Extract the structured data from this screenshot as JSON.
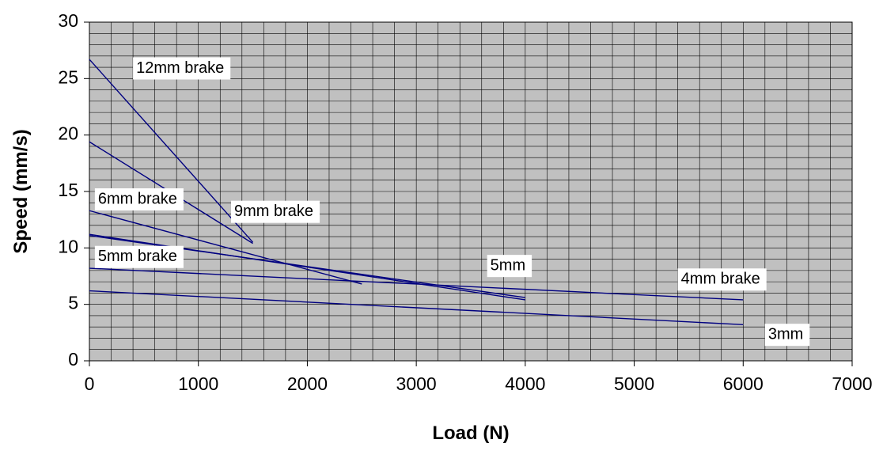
{
  "chart_data": {
    "type": "line",
    "title": "",
    "xlabel": "Load (N)",
    "ylabel": "Speed (mm/s)",
    "xlim": [
      0,
      7000
    ],
    "ylim": [
      0,
      30
    ],
    "x_ticks": [
      0,
      1000,
      2000,
      3000,
      4000,
      5000,
      6000,
      7000
    ],
    "y_ticks": [
      0,
      5,
      10,
      15,
      20,
      25,
      30
    ],
    "grid": true,
    "legend": "none",
    "colors": {
      "plot_bg": "#c0c0c0",
      "grid": "#000000",
      "line": "#000080"
    },
    "series": [
      {
        "label": "12mm brake",
        "points": [
          [
            0,
            26.7
          ],
          [
            1500,
            10.5
          ]
        ]
      },
      {
        "label": "9mm brake",
        "points": [
          [
            0,
            19.4
          ],
          [
            1500,
            10.4
          ]
        ]
      },
      {
        "label": "6mm brake",
        "points": [
          [
            0,
            13.3
          ],
          [
            2500,
            6.8
          ]
        ]
      },
      {
        "label": "5mm brake",
        "points": [
          [
            0,
            11.2
          ],
          [
            4000,
            5.4
          ]
        ]
      },
      {
        "label": "5mm",
        "points": [
          [
            0,
            11.1
          ],
          [
            4000,
            5.6
          ]
        ]
      },
      {
        "label": "4mm brake",
        "points": [
          [
            0,
            8.2
          ],
          [
            6000,
            5.4
          ]
        ]
      },
      {
        "label": "3mm",
        "points": [
          [
            0,
            6.2
          ],
          [
            6000,
            3.2
          ]
        ]
      }
    ],
    "annotations": [
      {
        "text": "12mm brake",
        "x": 400,
        "y": 25.9
      },
      {
        "text": "9mm brake",
        "x": 1300,
        "y": 13.2
      },
      {
        "text": "6mm brake",
        "x": 50,
        "y": 14.3
      },
      {
        "text": "5mm brake",
        "x": 50,
        "y": 9.2
      },
      {
        "text": "5mm",
        "x": 3650,
        "y": 8.4
      },
      {
        "text": "4mm brake",
        "x": 5400,
        "y": 7.2
      },
      {
        "text": "3mm",
        "x": 6200,
        "y": 2.3
      }
    ]
  }
}
